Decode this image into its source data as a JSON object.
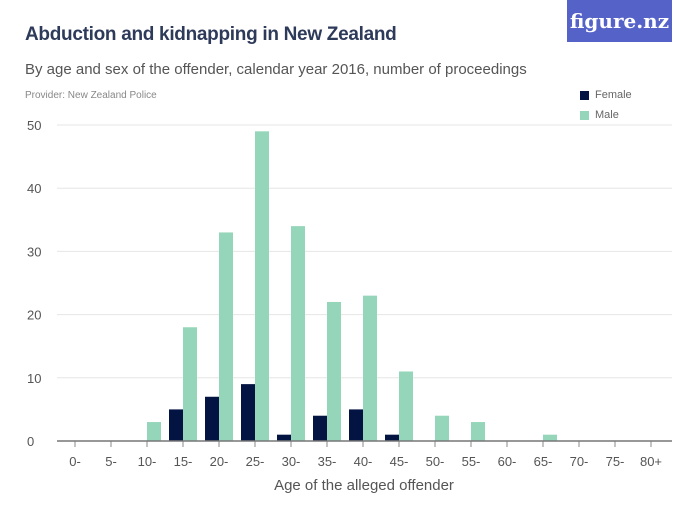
{
  "chart_data": {
    "type": "bar",
    "title": "Abduction and kidnapping in New Zealand",
    "subtitle": "By age and sex of the offender, calendar year 2016, number of proceedings",
    "provider": "Provider: New Zealand Police",
    "xlabel": "Age of the alleged offender",
    "ylabel": "",
    "ylim": [
      0,
      50
    ],
    "yticks": [
      0,
      10,
      20,
      30,
      40,
      50
    ],
    "grid": true,
    "legend_position": "top-right",
    "categories": [
      "0-",
      "5-",
      "10-",
      "15-",
      "20-",
      "25-",
      "30-",
      "35-",
      "40-",
      "45-",
      "50-",
      "55-",
      "60-",
      "65-",
      "70-",
      "75-",
      "80+"
    ],
    "series": [
      {
        "name": "Female",
        "color": "#031442",
        "values": [
          0,
          0,
          0,
          5,
          7,
          9,
          1,
          4,
          5,
          1,
          0,
          0,
          0,
          0,
          0,
          0,
          0
        ]
      },
      {
        "name": "Male",
        "color": "#95d6ba",
        "values": [
          0,
          0,
          3,
          18,
          33,
          49,
          34,
          22,
          23,
          11,
          4,
          3,
          0,
          1,
          0,
          0,
          0
        ]
      }
    ]
  },
  "logo": "figure.nz"
}
